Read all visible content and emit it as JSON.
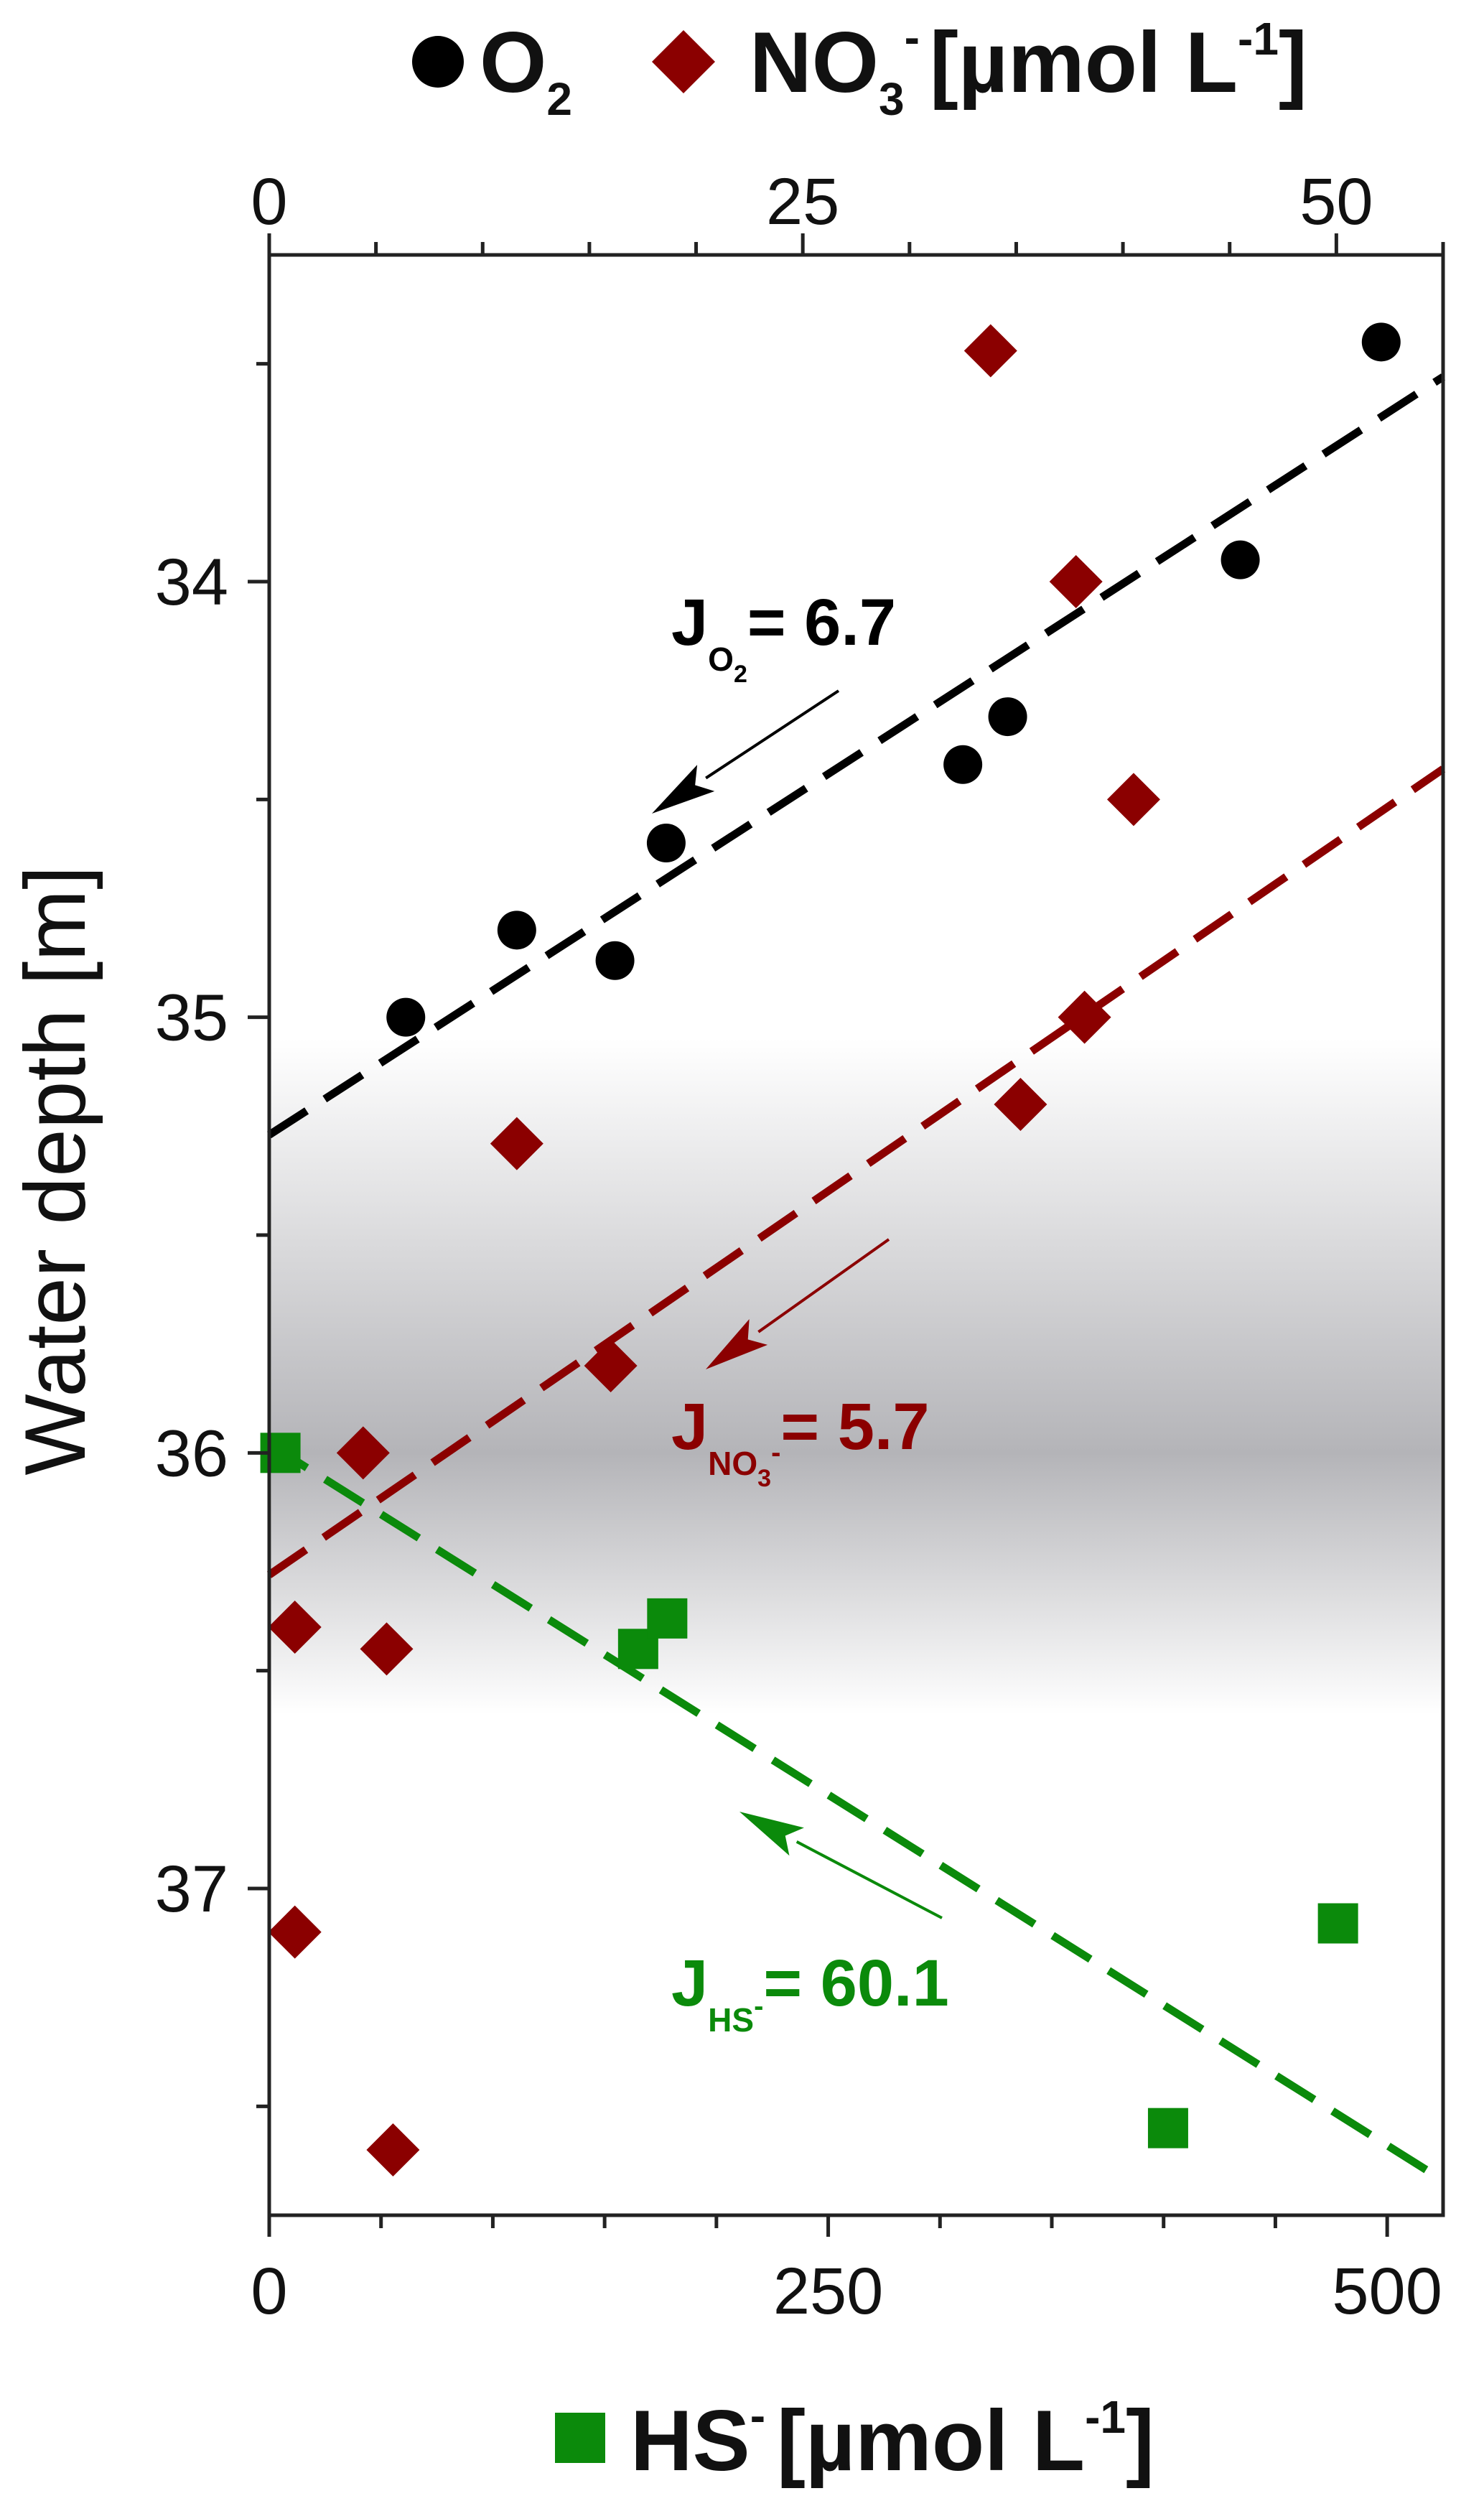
{
  "chart_data": {
    "type": "scatter",
    "title": "",
    "ylabel": "Water depth [m]",
    "ylim": [
      37.75,
      33.25
    ],
    "yticks": [
      "34",
      "35",
      "36",
      "37"
    ],
    "y_inverted": true,
    "legend": {
      "placement": "top",
      "top_entries": [
        {
          "symbol": "circle",
          "label": "O",
          "sub": "2"
        },
        {
          "symbol": "diamond",
          "label": "NO",
          "sub": "3",
          "sup": "-",
          "unit": "[µmol L",
          "unit_sup": "-1",
          "unit_end": "]"
        }
      ],
      "bottom_entry": {
        "symbol": "square",
        "label": "HS",
        "sup": "-",
        "unit": "[µmol L",
        "unit_sup": "-1",
        "unit_end": "]"
      }
    },
    "top_axis": {
      "range": [
        0,
        55
      ],
      "ticklabels": [
        "0",
        "25",
        "50"
      ],
      "tickvalues": [
        0,
        25,
        50
      ],
      "minor_step": 5
    },
    "bottom_axis": {
      "range": [
        0,
        525
      ],
      "ticklabels": [
        "0",
        "250",
        "500"
      ],
      "tickvalues": [
        0,
        250,
        500
      ],
      "minor_step": 50
    },
    "shaded_band": {
      "from": 35.05,
      "to": 36.6,
      "peak": 36.0,
      "color": "#b4b4b8"
    },
    "series": [
      {
        "name": "O2",
        "axis": "top",
        "marker": "circle",
        "color": "#000000",
        "x": [
          6.4,
          11.6,
          16.2,
          18.6,
          32.5,
          34.6,
          45.5,
          52.1
        ],
        "y": [
          35.0,
          34.8,
          34.87,
          34.6,
          34.42,
          34.31,
          33.95,
          33.45
        ],
        "fit": {
          "x": [
            0,
            55
          ],
          "y": [
            35.27,
            33.53
          ]
        },
        "flux": {
          "label": "J",
          "sub": "O",
          "subsub": "2",
          "value": "= 6.7"
        }
      },
      {
        "name": "NO3-",
        "axis": "top",
        "marker": "diamond",
        "color": "#8b0000",
        "x": [
          33.8,
          37.8,
          40.5,
          38.2,
          35.2,
          11.6,
          16.0,
          4.4,
          1.2,
          5.5,
          1.2,
          5.8
        ],
        "y": [
          33.47,
          34.0,
          34.5,
          35.0,
          35.2,
          35.29,
          35.8,
          36.0,
          36.4,
          36.45,
          37.1,
          37.6
        ],
        "fit": {
          "x": [
            0,
            55
          ],
          "y": [
            36.28,
            34.43
          ]
        },
        "flux": {
          "label": "J",
          "sub": "NO",
          "subsub": "3",
          "subsup": "-",
          "value": "= 5.7"
        }
      },
      {
        "name": "HS-",
        "axis": "bottom",
        "marker": "square",
        "color": "#0b8a0b",
        "x": [
          5,
          165,
          178,
          478,
          402
        ],
        "y": [
          36.0,
          36.45,
          36.38,
          37.08,
          37.55
        ],
        "fit": {
          "x": [
            0,
            525
          ],
          "y": [
            35.98,
            37.67
          ]
        },
        "flux": {
          "label": "J",
          "sub": "HS",
          "subsup": "-",
          "value": "= 60.1"
        }
      }
    ]
  }
}
